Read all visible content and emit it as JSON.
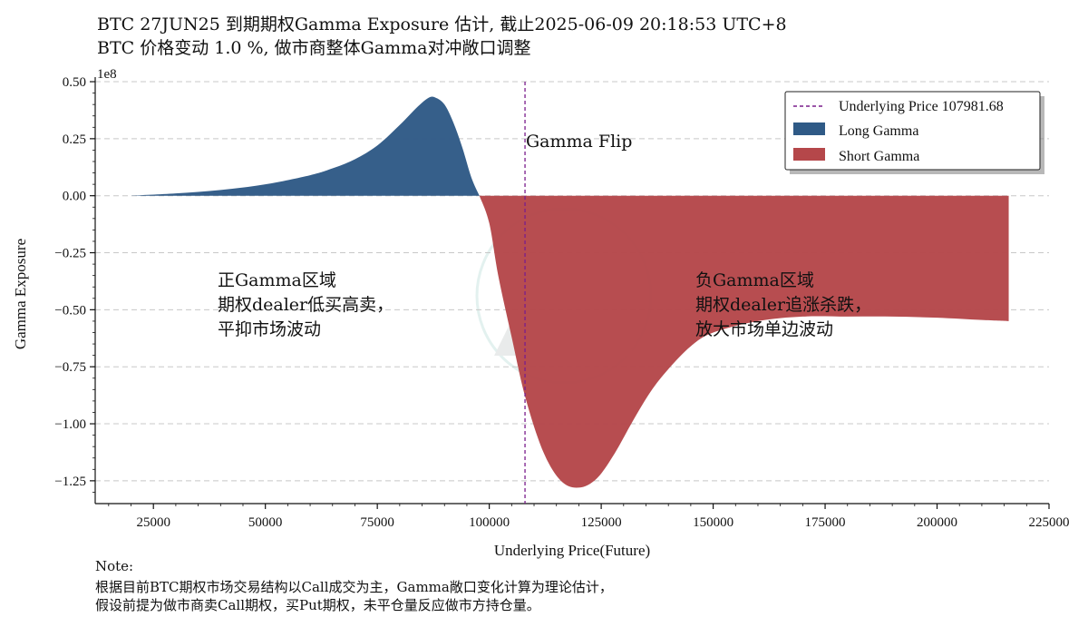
{
  "chart_data": {
    "type": "area",
    "title": "BTC 27JUN25 到期期权Gamma Exposure 估计, 截止2025-06-09 20:18:53 UTC+8",
    "subtitle": "BTC 价格变动 1.0 %, 做市商整体Gamma对冲敞口调整",
    "xlabel": "Underlying Price(Future)",
    "ylabel": "Gamma Exposure",
    "y_scale_label": "1e8",
    "xlim": [
      12000,
      225000
    ],
    "ylim": [
      -1.35,
      0.52
    ],
    "x_ticks": [
      25000,
      50000,
      75000,
      100000,
      125000,
      150000,
      175000,
      200000,
      225000
    ],
    "y_ticks": [
      0.5,
      0.25,
      0.0,
      -0.25,
      -0.5,
      -0.75,
      -1.0,
      -1.25
    ],
    "y_tick_labels": [
      "0.50",
      "0.25",
      "0.00",
      "−0.25",
      "−0.50",
      "−0.75",
      "−1.00",
      "−1.25"
    ],
    "grid": "horizontal-dashed",
    "legend_position": "top-right",
    "underlying_price": 107981.68,
    "gamma_flip_x": 97800,
    "series": [
      {
        "name": "Long Gamma",
        "color": "#2f5a86",
        "x": [
          20000,
          30000,
          40000,
          50000,
          60000,
          65000,
          70000,
          75000,
          80000,
          84000,
          86500,
          88000,
          90000,
          92000,
          94000,
          96000,
          97800
        ],
        "values": [
          0.0,
          0.01,
          0.025,
          0.05,
          0.09,
          0.12,
          0.16,
          0.22,
          0.31,
          0.39,
          0.43,
          0.43,
          0.4,
          0.32,
          0.21,
          0.08,
          0.0
        ]
      },
      {
        "name": "Short Gamma",
        "color": "#b5474a",
        "x": [
          97800,
          100000,
          102000,
          105000,
          108000,
          112000,
          116000,
          120000,
          124000,
          128000,
          132000,
          136000,
          140000,
          145000,
          150000,
          160000,
          170000,
          180000,
          190000,
          200000,
          210000,
          216000
        ],
        "values": [
          0.0,
          -0.12,
          -0.35,
          -0.62,
          -0.88,
          -1.12,
          -1.25,
          -1.28,
          -1.24,
          -1.13,
          -0.99,
          -0.86,
          -0.76,
          -0.66,
          -0.6,
          -0.55,
          -0.53,
          -0.53,
          -0.53,
          -0.535,
          -0.545,
          -0.55
        ]
      }
    ],
    "legend": [
      {
        "label": "Underlying Price 107981.68",
        "kind": "dashed-line",
        "color": "#7a1d8c"
      },
      {
        "label": "Long Gamma",
        "kind": "patch",
        "color": "#2f5a86"
      },
      {
        "label": "Short Gamma",
        "kind": "patch",
        "color": "#b5474a"
      }
    ],
    "annotations": {
      "flip": "Gamma Flip",
      "positive": [
        "正Gamma区域",
        "期权dealer低买高卖，",
        "平抑市场波动"
      ],
      "negative": [
        "负Gamma区域",
        "期权dealer追涨杀跌，",
        "放大市场单边波动"
      ]
    }
  },
  "note": {
    "label": "Note:",
    "lines": [
      "根据目前BTC期权市场交易结构以Call成交为主，Gamma敞口变化计算为理论估计，",
      "假设前提为做市商卖Call期权，买Put期权，未平仓量反应做市方持仓量。"
    ]
  }
}
